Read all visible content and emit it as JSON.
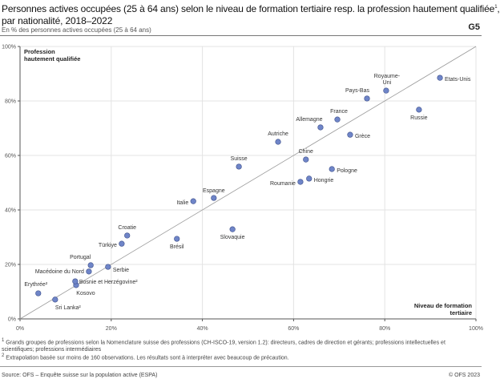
{
  "header": {
    "title": "Personnes actives occupées (25 à 64 ans) selon le niveau de formation tertiaire resp. la profession hautement qualifiée",
    "title_sup": "1",
    "title_line2": "par nationalité, 2018–2022",
    "subtitle": "En % des personnes actives occupées (25 à 64 ans)",
    "graph_number": "G5"
  },
  "footnotes": [
    {
      "mark": "1",
      "text": "Grands groupes de professions selon la Nomenclature suisse des professions (CH-ISCO-19, version 1.2): directeurs, cadres de direction et gérants; professions intellectuelles et scientifiques; professions intermédiaires"
    },
    {
      "mark": "2",
      "text": "Extrapolation basée sur moins de 160 observations. Les résultats sont à interpréter avec beaucoup de précaution."
    }
  ],
  "source": "Source: OFS – Enquête suisse sur la population active (ESPA)",
  "copyright": "© OFS 2023",
  "colors": {
    "point": "#6f85c8",
    "point_stroke": "#3d4f8a",
    "diagonal": "#999999",
    "grid": "#e3e3e3"
  },
  "chart_data": {
    "type": "scatter",
    "xlabel": "Niveau de formation tertiaire",
    "ylabel": "Profession hautement qualifiée",
    "xlim": [
      0,
      100
    ],
    "ylim": [
      0,
      100
    ],
    "xticks": [
      "0%",
      "20%",
      "40%",
      "60%",
      "80%",
      "100%"
    ],
    "yticks": [
      "0%",
      "20%",
      "40%",
      "60%",
      "80%",
      "100%"
    ],
    "grid": true,
    "reference_line": "diagonal y=x",
    "points": [
      {
        "label": "Erythrée²",
        "x": 4.0,
        "y": 9.4
      },
      {
        "label": "Sri Lanka²",
        "x": 7.7,
        "y": 7.1
      },
      {
        "label": "Kosovo",
        "x": 12.3,
        "y": 12.4
      },
      {
        "label": "Bosnie et Herzégovine²",
        "x": 12.1,
        "y": 13.8
      },
      {
        "label": "Macédoine du Nord",
        "x": 15.1,
        "y": 17.4
      },
      {
        "label": "Portugal",
        "x": 15.5,
        "y": 19.7
      },
      {
        "label": "Serbie",
        "x": 19.3,
        "y": 19.1
      },
      {
        "label": "Türkiye",
        "x": 22.3,
        "y": 27.6
      },
      {
        "label": "Croatie",
        "x": 23.5,
        "y": 30.6
      },
      {
        "label": "Brésil",
        "x": 34.4,
        "y": 29.4
      },
      {
        "label": "Italie",
        "x": 38.0,
        "y": 43.2
      },
      {
        "label": "Espagne",
        "x": 42.5,
        "y": 44.4
      },
      {
        "label": "Slovaquie",
        "x": 46.6,
        "y": 32.9
      },
      {
        "label": "Suisse",
        "x": 48.0,
        "y": 55.9
      },
      {
        "label": "Autriche",
        "x": 56.6,
        "y": 65.0
      },
      {
        "label": "Roumanie",
        "x": 61.5,
        "y": 50.3
      },
      {
        "label": "Chine",
        "x": 62.7,
        "y": 58.5
      },
      {
        "label": "Hongrie",
        "x": 63.4,
        "y": 51.5
      },
      {
        "label": "Pologne",
        "x": 68.4,
        "y": 55.0
      },
      {
        "label": "Allemagne",
        "x": 65.9,
        "y": 70.3
      },
      {
        "label": "France",
        "x": 69.6,
        "y": 73.2
      },
      {
        "label": "Grèce",
        "x": 72.4,
        "y": 67.6
      },
      {
        "label": "Pays-Bas",
        "x": 76.1,
        "y": 80.9
      },
      {
        "label": "Royaume-Uni",
        "x": 80.3,
        "y": 83.8
      },
      {
        "label": "Russie",
        "x": 87.5,
        "y": 76.8
      },
      {
        "label": "Etats-Unis",
        "x": 92.1,
        "y": 88.5
      }
    ]
  }
}
